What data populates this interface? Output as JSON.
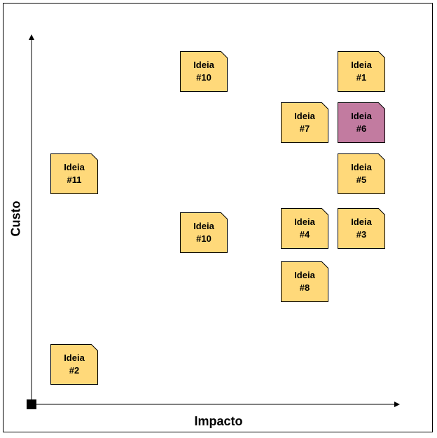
{
  "axes": {
    "x_label": "Impacto",
    "y_label": "Custo"
  },
  "colors": {
    "note_fill": "#ffd97a",
    "note_highlight": "#c27ba0",
    "stroke": "#000000"
  },
  "notes": [
    {
      "id": "n10a",
      "line1": "Ideia",
      "line2": "#10",
      "highlight": false
    },
    {
      "id": "n1",
      "line1": "Ideia",
      "line2": "#1",
      "highlight": false
    },
    {
      "id": "n7",
      "line1": "Ideia",
      "line2": "#7",
      "highlight": false
    },
    {
      "id": "n6",
      "line1": "Ideia",
      "line2": "#6",
      "highlight": true
    },
    {
      "id": "n11",
      "line1": "Ideia",
      "line2": "#11",
      "highlight": false
    },
    {
      "id": "n5",
      "line1": "Ideia",
      "line2": "#5",
      "highlight": false
    },
    {
      "id": "n10b",
      "line1": "Ideia",
      "line2": "#10",
      "highlight": false
    },
    {
      "id": "n4",
      "line1": "Ideia",
      "line2": "#4",
      "highlight": false
    },
    {
      "id": "n3",
      "line1": "Ideia",
      "line2": "#3",
      "highlight": false
    },
    {
      "id": "n8",
      "line1": "Ideia",
      "line2": "#8",
      "highlight": false
    },
    {
      "id": "n2",
      "line1": "Ideia",
      "line2": "#2",
      "highlight": false
    }
  ]
}
